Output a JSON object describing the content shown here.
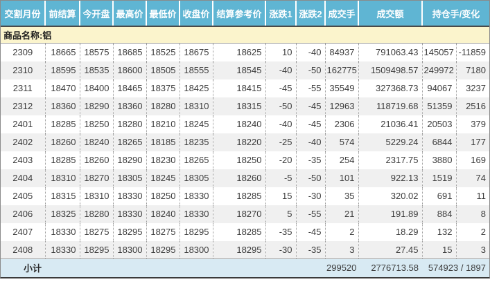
{
  "table": {
    "commodity_label": "商品名称:铝",
    "columns": [
      "交割月份",
      "前结算",
      "今开盘",
      "最高价",
      "最低价",
      "收盘价",
      "结算参考价",
      "涨跌1",
      "涨跌2",
      "成交手",
      "成交额",
      "持仓手/变化"
    ],
    "rows": [
      [
        "2309",
        "18665",
        "18575",
        "18685",
        "18525",
        "18675",
        "18625",
        "10",
        "-40",
        "84937",
        "791063.43",
        "145057",
        "-11859"
      ],
      [
        "2310",
        "18595",
        "18535",
        "18600",
        "18505",
        "18555",
        "18545",
        "-40",
        "-50",
        "162775",
        "1509498.57",
        "249972",
        "7180"
      ],
      [
        "2311",
        "18470",
        "18400",
        "18465",
        "18375",
        "18425",
        "18415",
        "-45",
        "-55",
        "35549",
        "327368.73",
        "94067",
        "3237"
      ],
      [
        "2312",
        "18360",
        "18290",
        "18360",
        "18280",
        "18310",
        "18315",
        "-50",
        "-45",
        "12963",
        "118719.68",
        "51359",
        "2516"
      ],
      [
        "2401",
        "18285",
        "18250",
        "18280",
        "18210",
        "18245",
        "18240",
        "-40",
        "-45",
        "2306",
        "21036.41",
        "20503",
        "379"
      ],
      [
        "2402",
        "18260",
        "18240",
        "18265",
        "18185",
        "18235",
        "18220",
        "-25",
        "-40",
        "574",
        "5229.24",
        "6844",
        "177"
      ],
      [
        "2403",
        "18285",
        "18260",
        "18290",
        "18230",
        "18265",
        "18250",
        "-20",
        "-35",
        "254",
        "2317.75",
        "3880",
        "169"
      ],
      [
        "2404",
        "18310",
        "18270",
        "18305",
        "18245",
        "18305",
        "18260",
        "-5",
        "-50",
        "101",
        "922.13",
        "1519",
        "74"
      ],
      [
        "2405",
        "18315",
        "18310",
        "18330",
        "18250",
        "18330",
        "18285",
        "15",
        "-30",
        "35",
        "320.02",
        "691",
        "11"
      ],
      [
        "2406",
        "18325",
        "18280",
        "18330",
        "18240",
        "18330",
        "18270",
        "5",
        "-55",
        "21",
        "191.89",
        "884",
        "8"
      ],
      [
        "2407",
        "18330",
        "18275",
        "18295",
        "18275",
        "18295",
        "18285",
        "-35",
        "-45",
        "2",
        "18.29",
        "132",
        "2"
      ],
      [
        "2408",
        "18330",
        "18295",
        "18300",
        "18295",
        "18300",
        "18295",
        "-30",
        "-35",
        "3",
        "27.45",
        "15",
        "3"
      ]
    ],
    "subtotal": {
      "label": "小计",
      "volume": "299520",
      "turnover": "2776713.58",
      "open_interest_change": "574923 / 1897"
    }
  },
  "colors": {
    "header_bg": "#5fb5d3",
    "header_text": "#ffffff",
    "commodity_row_bg": "#fbf4cc",
    "row_stripe_bg": "#f0f0f0",
    "subtotal_row_bg": "#d8eaf3",
    "text": "#3c3c3c"
  }
}
